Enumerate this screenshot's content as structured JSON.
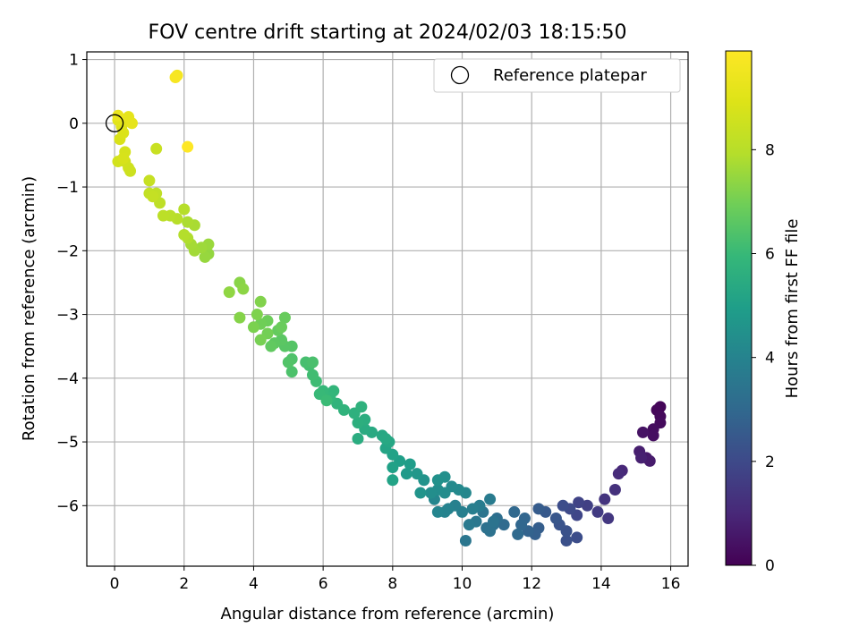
{
  "chart_data": {
    "type": "scatter",
    "title": "FOV centre drift starting at 2024/02/03 18:15:50",
    "xlabel": "Angular distance from reference (arcmin)",
    "ylabel": "Rotation from reference (arcmin)",
    "xlim": [
      -0.8,
      16.5
    ],
    "ylim": [
      -6.95,
      1.12
    ],
    "xticks": [
      0,
      2,
      4,
      6,
      8,
      10,
      12,
      14,
      16
    ],
    "yticks": [
      1,
      0,
      -1,
      -2,
      -3,
      -4,
      -5,
      -6
    ],
    "grid": true,
    "legend": {
      "position": "top-right",
      "entries": [
        "Reference platepar"
      ]
    },
    "reference_point": {
      "x": 0,
      "y": 0
    },
    "colorbar": {
      "label": "Hours from first FF file",
      "colormap": "viridis",
      "range": [
        0,
        9.9
      ],
      "ticks": [
        0,
        2,
        4,
        6,
        8
      ]
    },
    "points": [
      {
        "x": 15.7,
        "y": -4.45,
        "t": 0.1
      },
      {
        "x": 15.6,
        "y": -4.5,
        "t": 0.15
      },
      {
        "x": 15.7,
        "y": -4.6,
        "t": 0.2
      },
      {
        "x": 15.7,
        "y": -4.7,
        "t": 0.25
      },
      {
        "x": 15.5,
        "y": -4.8,
        "t": 0.3
      },
      {
        "x": 15.5,
        "y": -4.9,
        "t": 0.35
      },
      {
        "x": 15.2,
        "y": -4.85,
        "t": 0.45
      },
      {
        "x": 15.3,
        "y": -5.25,
        "t": 0.6
      },
      {
        "x": 15.4,
        "y": -5.3,
        "t": 0.65
      },
      {
        "x": 15.1,
        "y": -5.15,
        "t": 0.75
      },
      {
        "x": 15.15,
        "y": -5.25,
        "t": 0.8
      },
      {
        "x": 14.6,
        "y": -5.45,
        "t": 1.0
      },
      {
        "x": 14.5,
        "y": -5.5,
        "t": 1.1
      },
      {
        "x": 14.4,
        "y": -5.75,
        "t": 1.25
      },
      {
        "x": 14.1,
        "y": -5.9,
        "t": 1.35
      },
      {
        "x": 14.2,
        "y": -6.2,
        "t": 1.45
      },
      {
        "x": 13.9,
        "y": -6.1,
        "t": 1.55
      },
      {
        "x": 13.6,
        "y": -6.0,
        "t": 1.7
      },
      {
        "x": 13.35,
        "y": -5.95,
        "t": 1.8
      },
      {
        "x": 13.3,
        "y": -6.15,
        "t": 1.9
      },
      {
        "x": 13.1,
        "y": -6.05,
        "t": 2.0
      },
      {
        "x": 12.9,
        "y": -6.0,
        "t": 2.1
      },
      {
        "x": 13.3,
        "y": -6.5,
        "t": 2.1
      },
      {
        "x": 13.0,
        "y": -6.55,
        "t": 2.2
      },
      {
        "x": 13.0,
        "y": -6.4,
        "t": 2.25
      },
      {
        "x": 12.8,
        "y": -6.3,
        "t": 2.3
      },
      {
        "x": 12.7,
        "y": -6.2,
        "t": 2.4
      },
      {
        "x": 12.4,
        "y": -6.1,
        "t": 2.5
      },
      {
        "x": 12.2,
        "y": -6.05,
        "t": 2.6
      },
      {
        "x": 12.2,
        "y": -6.35,
        "t": 2.65
      },
      {
        "x": 12.1,
        "y": -6.45,
        "t": 2.7
      },
      {
        "x": 11.9,
        "y": -6.4,
        "t": 2.8
      },
      {
        "x": 11.8,
        "y": -6.2,
        "t": 2.9
      },
      {
        "x": 11.7,
        "y": -6.3,
        "t": 2.95
      },
      {
        "x": 11.5,
        "y": -6.1,
        "t": 3.0
      },
      {
        "x": 11.6,
        "y": -6.45,
        "t": 3.05
      },
      {
        "x": 11.2,
        "y": -6.3,
        "t": 3.1
      },
      {
        "x": 11.0,
        "y": -6.2,
        "t": 3.2
      },
      {
        "x": 10.9,
        "y": -6.3,
        "t": 3.25
      },
      {
        "x": 10.7,
        "y": -6.35,
        "t": 3.3
      },
      {
        "x": 10.8,
        "y": -6.4,
        "t": 3.35
      },
      {
        "x": 10.9,
        "y": -6.25,
        "t": 3.4
      },
      {
        "x": 10.6,
        "y": -6.1,
        "t": 3.45
      },
      {
        "x": 10.1,
        "y": -6.55,
        "t": 3.5
      },
      {
        "x": 10.4,
        "y": -6.25,
        "t": 3.55
      },
      {
        "x": 10.2,
        "y": -6.3,
        "t": 3.6
      },
      {
        "x": 10.8,
        "y": -5.9,
        "t": 3.7
      },
      {
        "x": 10.5,
        "y": -6.0,
        "t": 3.75
      },
      {
        "x": 10.3,
        "y": -6.05,
        "t": 3.8
      },
      {
        "x": 10.0,
        "y": -6.1,
        "t": 3.85
      },
      {
        "x": 9.8,
        "y": -6.0,
        "t": 3.9
      },
      {
        "x": 9.6,
        "y": -6.05,
        "t": 3.95
      },
      {
        "x": 9.5,
        "y": -6.1,
        "t": 4.0
      },
      {
        "x": 9.3,
        "y": -6.1,
        "t": 4.05
      },
      {
        "x": 9.2,
        "y": -5.9,
        "t": 4.1
      },
      {
        "x": 10.1,
        "y": -5.8,
        "t": 4.15
      },
      {
        "x": 9.9,
        "y": -5.75,
        "t": 4.2
      },
      {
        "x": 9.7,
        "y": -5.7,
        "t": 4.25
      },
      {
        "x": 9.5,
        "y": -5.8,
        "t": 4.3
      },
      {
        "x": 9.3,
        "y": -5.75,
        "t": 4.35
      },
      {
        "x": 9.1,
        "y": -5.8,
        "t": 4.4
      },
      {
        "x": 9.5,
        "y": -5.55,
        "t": 4.45
      },
      {
        "x": 9.3,
        "y": -5.6,
        "t": 4.5
      },
      {
        "x": 8.9,
        "y": -5.6,
        "t": 4.55
      },
      {
        "x": 8.8,
        "y": -5.8,
        "t": 4.6
      },
      {
        "x": 8.7,
        "y": -5.5,
        "t": 4.7
      },
      {
        "x": 8.4,
        "y": -5.5,
        "t": 4.8
      },
      {
        "x": 8.5,
        "y": -5.35,
        "t": 4.9
      },
      {
        "x": 8.2,
        "y": -5.3,
        "t": 5.0
      },
      {
        "x": 8.0,
        "y": -5.4,
        "t": 5.05
      },
      {
        "x": 8.0,
        "y": -5.2,
        "t": 5.1
      },
      {
        "x": 8.0,
        "y": -5.6,
        "t": 5.15
      },
      {
        "x": 7.8,
        "y": -5.1,
        "t": 5.2
      },
      {
        "x": 7.9,
        "y": -5.0,
        "t": 5.25
      },
      {
        "x": 7.7,
        "y": -4.9,
        "t": 5.3
      },
      {
        "x": 7.8,
        "y": -4.95,
        "t": 5.35
      },
      {
        "x": 7.4,
        "y": -4.85,
        "t": 5.4
      },
      {
        "x": 7.2,
        "y": -4.8,
        "t": 5.45
      },
      {
        "x": 7.0,
        "y": -4.95,
        "t": 5.5
      },
      {
        "x": 7.2,
        "y": -4.65,
        "t": 5.55
      },
      {
        "x": 7.0,
        "y": -4.7,
        "t": 5.6
      },
      {
        "x": 6.9,
        "y": -4.55,
        "t": 5.65
      },
      {
        "x": 7.1,
        "y": -4.45,
        "t": 5.7
      },
      {
        "x": 6.6,
        "y": -4.5,
        "t": 5.75
      },
      {
        "x": 6.4,
        "y": -4.4,
        "t": 5.8
      },
      {
        "x": 6.3,
        "y": -4.2,
        "t": 5.85
      },
      {
        "x": 6.2,
        "y": -4.3,
        "t": 5.9
      },
      {
        "x": 6.0,
        "y": -4.2,
        "t": 5.95
      },
      {
        "x": 5.9,
        "y": -4.25,
        "t": 6.0
      },
      {
        "x": 6.1,
        "y": -4.35,
        "t": 6.05
      },
      {
        "x": 5.8,
        "y": -4.05,
        "t": 6.1
      },
      {
        "x": 5.7,
        "y": -3.95,
        "t": 6.15
      },
      {
        "x": 5.6,
        "y": -3.8,
        "t": 6.2
      },
      {
        "x": 5.5,
        "y": -3.75,
        "t": 6.25
      },
      {
        "x": 5.7,
        "y": -3.75,
        "t": 6.3
      },
      {
        "x": 5.1,
        "y": -3.9,
        "t": 6.35
      },
      {
        "x": 5.1,
        "y": -3.7,
        "t": 6.4
      },
      {
        "x": 5.0,
        "y": -3.75,
        "t": 6.45
      },
      {
        "x": 5.1,
        "y": -3.5,
        "t": 6.5
      },
      {
        "x": 4.9,
        "y": -3.5,
        "t": 6.55
      },
      {
        "x": 4.8,
        "y": -3.4,
        "t": 6.6
      },
      {
        "x": 4.6,
        "y": -3.45,
        "t": 6.65
      },
      {
        "x": 4.5,
        "y": -3.5,
        "t": 6.7
      },
      {
        "x": 4.7,
        "y": -3.25,
        "t": 6.75
      },
      {
        "x": 4.9,
        "y": -3.05,
        "t": 6.8
      },
      {
        "x": 4.8,
        "y": -3.2,
        "t": 6.85
      },
      {
        "x": 4.4,
        "y": -3.1,
        "t": 6.9
      },
      {
        "x": 4.2,
        "y": -3.15,
        "t": 6.95
      },
      {
        "x": 4.4,
        "y": -3.3,
        "t": 7.0
      },
      {
        "x": 4.2,
        "y": -3.4,
        "t": 7.05
      },
      {
        "x": 4.0,
        "y": -3.2,
        "t": 7.1
      },
      {
        "x": 4.1,
        "y": -3.0,
        "t": 7.15
      },
      {
        "x": 4.2,
        "y": -2.8,
        "t": 7.2
      },
      {
        "x": 3.6,
        "y": -3.05,
        "t": 7.25
      },
      {
        "x": 3.6,
        "y": -2.5,
        "t": 7.3
      },
      {
        "x": 3.7,
        "y": -2.6,
        "t": 7.35
      },
      {
        "x": 3.3,
        "y": -2.65,
        "t": 7.4
      },
      {
        "x": 2.7,
        "y": -2.05,
        "t": 7.45
      },
      {
        "x": 2.6,
        "y": -2.1,
        "t": 7.5
      },
      {
        "x": 2.7,
        "y": -1.9,
        "t": 7.55
      },
      {
        "x": 2.5,
        "y": -1.95,
        "t": 7.6
      },
      {
        "x": 2.3,
        "y": -2.0,
        "t": 7.65
      },
      {
        "x": 2.2,
        "y": -1.9,
        "t": 7.7
      },
      {
        "x": 2.3,
        "y": -1.6,
        "t": 7.75
      },
      {
        "x": 2.1,
        "y": -1.55,
        "t": 7.8
      },
      {
        "x": 2.1,
        "y": -1.8,
        "t": 7.85
      },
      {
        "x": 2.0,
        "y": -1.75,
        "t": 7.9
      },
      {
        "x": 2.0,
        "y": -1.35,
        "t": 7.95
      },
      {
        "x": 1.8,
        "y": -1.5,
        "t": 8.0
      },
      {
        "x": 1.6,
        "y": -1.45,
        "t": 8.05
      },
      {
        "x": 1.4,
        "y": -1.45,
        "t": 8.1
      },
      {
        "x": 1.3,
        "y": -1.25,
        "t": 8.15
      },
      {
        "x": 1.2,
        "y": -1.1,
        "t": 8.2
      },
      {
        "x": 1.0,
        "y": -1.1,
        "t": 8.25
      },
      {
        "x": 1.1,
        "y": -1.15,
        "t": 8.3
      },
      {
        "x": 1.0,
        "y": -0.9,
        "t": 8.35
      },
      {
        "x": 1.2,
        "y": -0.4,
        "t": 8.4
      },
      {
        "x": 0.45,
        "y": -0.75,
        "t": 8.5
      },
      {
        "x": 0.4,
        "y": -0.7,
        "t": 8.55
      },
      {
        "x": 0.3,
        "y": -0.6,
        "t": 8.6
      },
      {
        "x": 0.1,
        "y": -0.6,
        "t": 8.65
      },
      {
        "x": 0.3,
        "y": -0.45,
        "t": 8.7
      },
      {
        "x": 0.25,
        "y": -0.55,
        "t": 8.75
      },
      {
        "x": 0.15,
        "y": -0.25,
        "t": 8.8
      },
      {
        "x": 0.25,
        "y": -0.15,
        "t": 8.85
      },
      {
        "x": 0.2,
        "y": -0.05,
        "t": 8.95
      },
      {
        "x": 0.1,
        "y": 0.05,
        "t": 9.05
      },
      {
        "x": 0.3,
        "y": 0.05,
        "t": 9.1
      },
      {
        "x": 0.4,
        "y": 0.1,
        "t": 9.15
      },
      {
        "x": 0.5,
        "y": 0.0,
        "t": 9.2
      },
      {
        "x": 0.1,
        "y": 0.12,
        "t": 9.3
      },
      {
        "x": 1.8,
        "y": 0.75,
        "t": 9.6
      },
      {
        "x": 1.75,
        "y": 0.72,
        "t": 9.7
      },
      {
        "x": 2.1,
        "y": -0.37,
        "t": 9.9
      }
    ]
  }
}
